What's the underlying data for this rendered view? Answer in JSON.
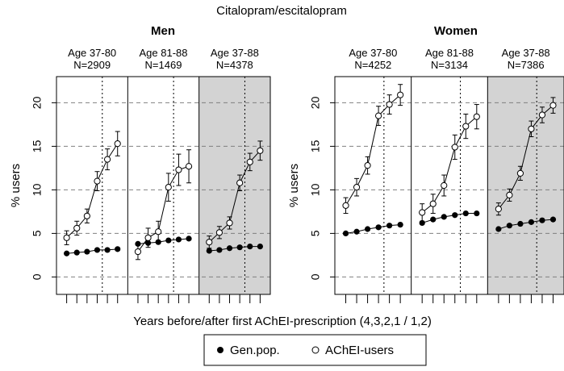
{
  "chart_data": {
    "type": "line",
    "title": "Citalopram/escitalopram",
    "xlabel": "Years before/after first AChEI-prescription (4,3,2,1 / 1,2)",
    "ylabel": "% users",
    "ylim": [
      -2,
      23
    ],
    "yticks": [
      0,
      5,
      10,
      15,
      20
    ],
    "x": [
      1,
      2,
      3,
      4,
      5,
      6
    ],
    "legend": [
      {
        "name": "Gen.pop.",
        "marker": "filled"
      },
      {
        "name": "AChEI-users",
        "marker": "open"
      }
    ],
    "panels": [
      {
        "title": "Men",
        "groups": [
          {
            "label": "Age 37-80",
            "n": "N=2909",
            "shaded": false,
            "genpop": [
              2.7,
              2.8,
              2.9,
              3.1,
              3.1,
              3.2
            ],
            "acheI": [
              4.5,
              5.6,
              7.0,
              11.0,
              13.5,
              15.3
            ],
            "acheI_err": [
              0.8,
              0.8,
              0.8,
              1.1,
              1.2,
              1.4
            ]
          },
          {
            "label": "Age 81-88",
            "n": "N=1469",
            "shaded": false,
            "genpop": [
              3.8,
              3.9,
              4.0,
              4.2,
              4.3,
              4.4
            ],
            "acheI": [
              2.9,
              4.5,
              5.2,
              10.3,
              12.3,
              12.7
            ],
            "acheI_err": [
              0.9,
              1.1,
              1.2,
              1.6,
              1.8,
              1.9
            ]
          },
          {
            "label": "Age 37-88",
            "n": "N=4378",
            "shaded": true,
            "genpop": [
              3.0,
              3.1,
              3.3,
              3.4,
              3.5,
              3.5
            ],
            "acheI": [
              4.0,
              5.1,
              6.2,
              10.8,
              13.2,
              14.5
            ],
            "acheI_err": [
              0.7,
              0.7,
              0.7,
              0.9,
              1.0,
              1.1
            ]
          }
        ]
      },
      {
        "title": "Women",
        "groups": [
          {
            "label": "Age 37-80",
            "n": "N=4252",
            "shaded": false,
            "genpop": [
              5.0,
              5.2,
              5.5,
              5.7,
              5.9,
              6.0
            ],
            "acheI": [
              8.2,
              10.3,
              12.8,
              18.5,
              19.8,
              20.9
            ],
            "acheI_err": [
              0.9,
              1.0,
              1.0,
              1.1,
              1.1,
              1.2
            ]
          },
          {
            "label": "Age 81-88",
            "n": "N=3134",
            "shaded": false,
            "genpop": [
              6.2,
              6.6,
              6.9,
              7.1,
              7.3,
              7.3
            ],
            "acheI": [
              7.4,
              8.4,
              10.5,
              14.9,
              17.3,
              18.4
            ],
            "acheI_err": [
              1.0,
              1.1,
              1.2,
              1.4,
              1.4,
              1.4
            ]
          },
          {
            "label": "Age 37-88",
            "n": "N=7386",
            "shaded": true,
            "genpop": [
              5.5,
              5.9,
              6.1,
              6.3,
              6.5,
              6.6
            ],
            "acheI": [
              7.8,
              9.4,
              11.9,
              17.0,
              18.6,
              19.7
            ],
            "acheI_err": [
              0.7,
              0.7,
              0.8,
              0.9,
              0.9,
              0.9
            ]
          }
        ]
      }
    ]
  }
}
